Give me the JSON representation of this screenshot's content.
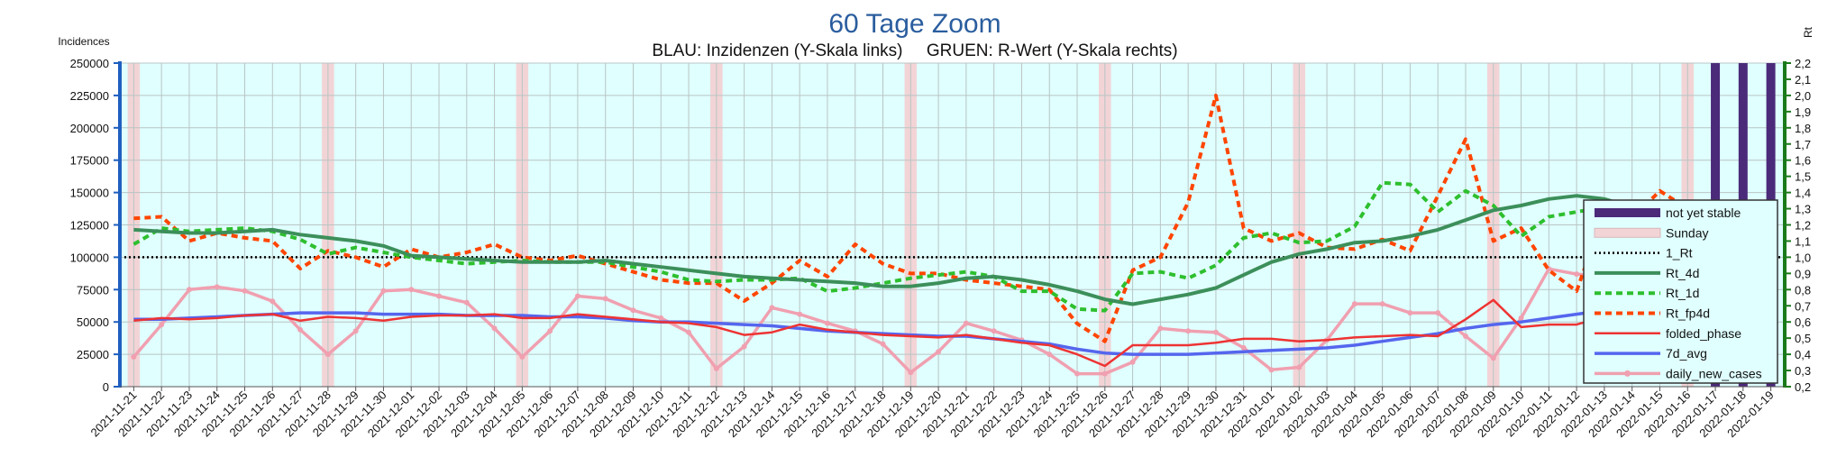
{
  "chart_data": {
    "type": "line",
    "title": "60 Tage Zoom",
    "subtitle": "BLAU: Inzidenzen (Y-Skala links)     GRUEN: R-Wert (Y-Skala rechts)",
    "ylabel_left": "Incidences",
    "ylabel_right": "Rt",
    "ylim_left": [
      0,
      250000
    ],
    "ylim_right": [
      0.2,
      2.2
    ],
    "yticks_left": [
      "0",
      "25000",
      "50000",
      "75000",
      "100000",
      "125000",
      "150000",
      "175000",
      "200000",
      "225000",
      "250000"
    ],
    "yticks_right": [
      "0,2",
      "0,3",
      "0,4",
      "0,5",
      "0,6",
      "0,7",
      "0,8",
      "0,9",
      "1,0",
      "1,1",
      "1,2",
      "1,3",
      "1,4",
      "1,5",
      "1,6",
      "1,7",
      "1,8",
      "1,9",
      "2,0",
      "2,1",
      "2,2"
    ],
    "grid": true,
    "legend_position": "right",
    "categories": [
      "2021-11-21",
      "2021-11-22",
      "2021-11-23",
      "2021-11-24",
      "2021-11-25",
      "2021-11-26",
      "2021-11-27",
      "2021-11-28",
      "2021-11-29",
      "2021-11-30",
      "2021-12-01",
      "2021-12-02",
      "2021-12-03",
      "2021-12-04",
      "2021-12-05",
      "2021-12-06",
      "2021-12-07",
      "2021-12-08",
      "2021-12-09",
      "2021-12-10",
      "2021-12-11",
      "2021-12-12",
      "2021-12-13",
      "2021-12-14",
      "2021-12-15",
      "2021-12-16",
      "2021-12-17",
      "2021-12-18",
      "2021-12-19",
      "2021-12-20",
      "2021-12-21",
      "2021-12-22",
      "2021-12-23",
      "2021-12-24",
      "2021-12-25",
      "2021-12-26",
      "2021-12-27",
      "2021-12-28",
      "2021-12-29",
      "2021-12-30",
      "2021-12-31",
      "2022-01-01",
      "2022-01-02",
      "2022-01-03",
      "2022-01-04",
      "2022-01-05",
      "2022-01-06",
      "2022-01-07",
      "2022-01-08",
      "2022-01-09",
      "2022-01-10",
      "2022-01-11",
      "2022-01-12",
      "2022-01-13",
      "2022-01-14",
      "2022-01-15",
      "2022-01-16",
      "2022-01-17",
      "2022-01-18",
      "2022-01-19"
    ],
    "sundays": [
      "2021-11-21",
      "2021-11-28",
      "2021-12-05",
      "2021-12-12",
      "2021-12-19",
      "2021-12-26",
      "2022-01-02",
      "2022-01-09",
      "2022-01-16"
    ],
    "not_yet_stable": [
      "2022-01-17",
      "2022-01-18",
      "2022-01-19"
    ],
    "one_rt": 1.0,
    "series": [
      {
        "name": "Rt_4d",
        "axis": "right",
        "color": "#3c8f5a",
        "values": [
          1.17,
          1.16,
          1.15,
          1.15,
          1.16,
          1.17,
          1.14,
          1.12,
          1.1,
          1.07,
          1.01,
          1.0,
          0.99,
          0.98,
          0.97,
          0.97,
          0.97,
          0.98,
          0.96,
          0.94,
          0.92,
          0.9,
          0.88,
          0.87,
          0.86,
          0.85,
          0.84,
          0.82,
          0.82,
          0.84,
          0.87,
          0.88,
          0.86,
          0.83,
          0.79,
          0.74,
          0.71,
          0.74,
          0.77,
          0.81,
          0.89,
          0.97,
          1.02,
          1.05,
          1.09,
          1.1,
          1.13,
          1.17,
          1.23,
          1.29,
          1.32,
          1.36,
          1.38,
          1.36,
          1.31,
          1.3,
          1.29,
          1.27,
          1.3,
          1.29
        ]
      },
      {
        "name": "Rt_1d",
        "axis": "right",
        "color": "#2ebf2e",
        "values": [
          1.08,
          1.18,
          1.16,
          1.17,
          1.18,
          1.16,
          1.11,
          1.02,
          1.06,
          1.03,
          1.0,
          0.98,
          0.96,
          0.97,
          0.98,
          0.97,
          0.97,
          0.97,
          0.94,
          0.91,
          0.86,
          0.85,
          0.86,
          0.86,
          0.87,
          0.79,
          0.81,
          0.84,
          0.87,
          0.89,
          0.91,
          0.88,
          0.79,
          0.79,
          0.68,
          0.67,
          0.9,
          0.91,
          0.87,
          0.95,
          1.12,
          1.15,
          1.09,
          1.1,
          1.19,
          1.46,
          1.45,
          1.28,
          1.41,
          1.32,
          1.13,
          1.25,
          1.28,
          1.31,
          1.3,
          1.21,
          1.18,
          1.08,
          1.18,
          1.08
        ]
      },
      {
        "name": "Rt_fp4d",
        "axis": "right",
        "color": "#ff4500",
        "values": [
          1.24,
          1.25,
          1.1,
          1.15,
          1.12,
          1.1,
          0.93,
          1.04,
          1.0,
          0.94,
          1.05,
          1.0,
          1.03,
          1.08,
          1.0,
          0.98,
          1.01,
          0.96,
          0.91,
          0.86,
          0.84,
          0.84,
          0.73,
          0.84,
          0.98,
          0.88,
          1.08,
          0.96,
          0.9,
          0.9,
          0.86,
          0.84,
          0.82,
          0.8,
          0.59,
          0.48,
          0.92,
          1.0,
          1.34,
          2.0,
          1.18,
          1.1,
          1.15,
          1.06,
          1.05,
          1.11,
          1.04,
          1.38,
          1.73,
          1.1,
          1.18,
          0.92,
          0.79,
          1.28,
          1.24,
          1.41,
          1.3,
          1.18,
          1.17,
          0.99
        ]
      },
      {
        "name": "folded_phase",
        "axis": "left",
        "color": "#ee3333",
        "values": [
          51000,
          53000,
          52000,
          53000,
          55000,
          56000,
          51000,
          54000,
          53000,
          51000,
          54000,
          55000,
          55000,
          56000,
          53000,
          53000,
          56000,
          54000,
          52000,
          50000,
          49000,
          46000,
          40000,
          42000,
          48000,
          44000,
          42000,
          40000,
          39000,
          38000,
          40000,
          37000,
          34000,
          32000,
          25000,
          16000,
          32000,
          32000,
          32000,
          34000,
          37000,
          37000,
          35000,
          36000,
          38000,
          39000,
          40000,
          39000,
          52000,
          67000,
          46000,
          48000,
          48000,
          54000,
          60000,
          62000,
          69000,
          71000,
          74000,
          65000
        ]
      },
      {
        "name": "7d_avg",
        "axis": "left",
        "color": "#5566ee",
        "values": [
          52000,
          52000,
          53000,
          54000,
          55000,
          56000,
          57000,
          57000,
          57000,
          56000,
          56000,
          56000,
          55000,
          55000,
          55000,
          54000,
          54000,
          53000,
          51000,
          50000,
          50000,
          49000,
          48000,
          47000,
          45000,
          43000,
          42000,
          41000,
          40000,
          39000,
          39000,
          37000,
          35000,
          33000,
          29000,
          26000,
          25000,
          25000,
          25000,
          26000,
          27000,
          28000,
          29000,
          30000,
          32000,
          35000,
          38000,
          41000,
          45000,
          48000,
          50000,
          53000,
          56000,
          59000,
          62000,
          65000,
          68000,
          70000,
          74000,
          76000
        ]
      },
      {
        "name": "daily_new_cases",
        "axis": "left",
        "color": "#f0a0b0",
        "values": [
          23000,
          48000,
          75000,
          77000,
          74000,
          66000,
          44000,
          25000,
          43000,
          74000,
          75000,
          70000,
          65000,
          45000,
          23000,
          43000,
          70000,
          68000,
          59000,
          53000,
          42000,
          14000,
          31000,
          61000,
          56000,
          49000,
          43000,
          33000,
          11000,
          27000,
          49000,
          43000,
          36000,
          25000,
          10000,
          10000,
          19000,
          45000,
          43000,
          42000,
          30000,
          13000,
          15000,
          36000,
          64000,
          64000,
          57000,
          57000,
          39000,
          22000,
          53000,
          91000,
          87000,
          85000,
          80000,
          57000,
          34000,
          78000,
          111000,
          91000
        ]
      }
    ],
    "legend": [
      "not yet stable",
      "Sunday",
      "1_Rt",
      "Rt_4d",
      "Rt_1d",
      "Rt_fp4d",
      "folded_phase",
      "7d_avg",
      "daily_new_cases"
    ],
    "colors": {
      "plot_background": "#e0ffff",
      "grid": "#b9c4c4",
      "sunday_band": "#f2d4d6",
      "not_yet_stable": "#4b2a7a",
      "left_axis": "#1f5fbf",
      "right_axis": "#1a7a1a",
      "one_rt_line": "#000000"
    }
  }
}
